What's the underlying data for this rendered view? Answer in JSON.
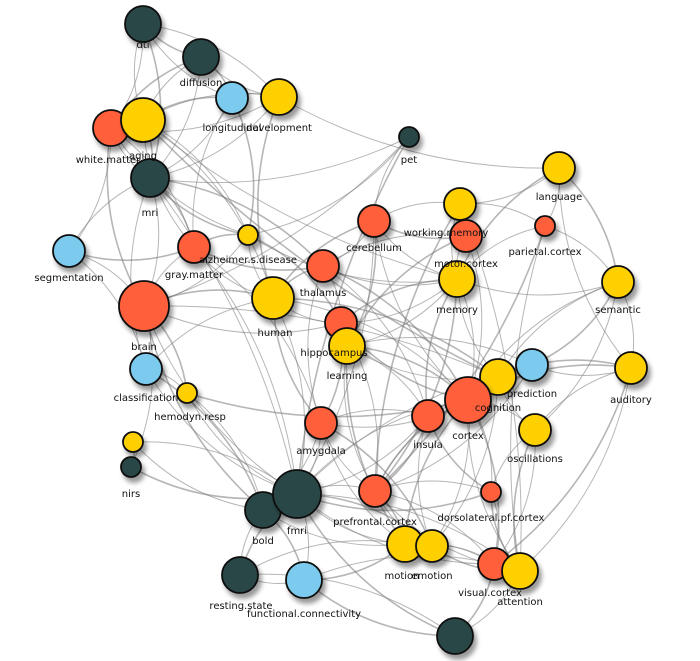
{
  "palette": {
    "method": "#2b4646",
    "measure": "#7ccaee",
    "region": "#ff5e3a",
    "concept": "#ffd000",
    "outline": "#111111",
    "edge": "#7a7a7a"
  },
  "nodes": [
    {
      "id": "dti",
      "label": "dti",
      "color": "method",
      "size": 3
    },
    {
      "id": "diffusion",
      "label": "diffusion",
      "color": "method",
      "size": 3
    },
    {
      "id": "longitudinal",
      "label": "longitudinal",
      "color": "measure",
      "size": 2
    },
    {
      "id": "development",
      "label": "development",
      "color": "concept",
      "size": 3
    },
    {
      "id": "white.matter",
      "label": "white.matter",
      "color": "region",
      "size": 3
    },
    {
      "id": "aging",
      "label": "aging",
      "color": "concept",
      "size": 4
    },
    {
      "id": "mri",
      "label": "mri",
      "color": "method",
      "size": 4
    },
    {
      "id": "pet",
      "label": "pet",
      "color": "method",
      "size": 1
    },
    {
      "id": "language",
      "label": "language",
      "color": "concept",
      "size": 2
    },
    {
      "id": "working.memory",
      "label": "working.memory",
      "color": "concept",
      "size": 2
    },
    {
      "id": "motor.cortex",
      "label": "motor.cortex",
      "color": "region",
      "size": 2
    },
    {
      "id": "parietal.cortex",
      "label": "parietal.cortex",
      "color": "region",
      "size": 1
    },
    {
      "id": "cerebellum",
      "label": "cerebellum",
      "color": "region",
      "size": 2
    },
    {
      "id": "segmentation",
      "label": "segmentation",
      "color": "measure",
      "size": 2
    },
    {
      "id": "gray.matter",
      "label": "gray.matter",
      "color": "region",
      "size": 2
    },
    {
      "id": "alzheimer.s.disease",
      "label": "alzheimer.s.disease",
      "color": "concept",
      "size": 1
    },
    {
      "id": "thalamus",
      "label": "thalamus",
      "color": "region",
      "size": 2
    },
    {
      "id": "memory",
      "label": "memory",
      "color": "concept",
      "size": 3
    },
    {
      "id": "semantic",
      "label": "semantic",
      "color": "concept",
      "size": 2
    },
    {
      "id": "human",
      "label": "human",
      "color": "concept",
      "size": 4
    },
    {
      "id": "brain",
      "label": "brain",
      "color": "region",
      "size": 5
    },
    {
      "id": "hippocampus",
      "label": "hippocampus",
      "color": "region",
      "size": 2
    },
    {
      "id": "learning",
      "label": "learning",
      "color": "concept",
      "size": 3
    },
    {
      "id": "classification",
      "label": "classification",
      "color": "measure",
      "size": 2
    },
    {
      "id": "hemodyn.resp",
      "label": "hemodyn.resp",
      "color": "concept",
      "size": 1
    },
    {
      "id": "prediction",
      "label": "prediction",
      "color": "measure",
      "size": 2
    },
    {
      "id": "cognition",
      "label": "cognition",
      "color": "concept",
      "size": 3
    },
    {
      "id": "auditory",
      "label": "auditory",
      "color": "concept",
      "size": 2
    },
    {
      "id": "cortex",
      "label": "cortex",
      "color": "region",
      "size": 4
    },
    {
      "id": "insula",
      "label": "insula",
      "color": "region",
      "size": 2
    },
    {
      "id": "amygdala",
      "label": "amygdala",
      "color": "region",
      "size": 2
    },
    {
      "id": "oscillations",
      "label": "oscillations",
      "color": "concept",
      "size": 2
    },
    {
      "id": "nirs-dot",
      "label": "",
      "color": "concept",
      "size": 1
    },
    {
      "id": "nirs",
      "label": "nirs",
      "color": "method",
      "size": 1
    },
    {
      "id": "bold",
      "label": "bold",
      "color": "method",
      "size": 3
    },
    {
      "id": "fmri",
      "label": "fmri",
      "color": "method",
      "size": 5
    },
    {
      "id": "prefrontal.cortex",
      "label": "prefrontal.cortex",
      "color": "region",
      "size": 2
    },
    {
      "id": "dorsolateral.pf.cortex",
      "label": "dorsolateral.pf.cortex",
      "color": "region",
      "size": 1
    },
    {
      "id": "motion",
      "label": "motion",
      "color": "concept",
      "size": 3
    },
    {
      "id": "emotion",
      "label": "emotion",
      "color": "concept",
      "size": 2
    },
    {
      "id": "visual.cortex",
      "label": "visual.cortex",
      "color": "region",
      "size": 2
    },
    {
      "id": "attention",
      "label": "attention",
      "color": "concept",
      "size": 3
    },
    {
      "id": "resting.state",
      "label": "resting.state",
      "color": "method",
      "size": 3
    },
    {
      "id": "functional.connectivity",
      "label": "functional.connectivity",
      "color": "measure",
      "size": 3
    },
    {
      "id": "bottom-node",
      "label": "",
      "color": "method",
      "size": 3
    }
  ],
  "edges": [
    [
      "dti",
      "diffusion"
    ],
    [
      "dti",
      "white.matter"
    ],
    [
      "dti",
      "aging"
    ],
    [
      "dti",
      "mri"
    ],
    [
      "dti",
      "longitudinal"
    ],
    [
      "dti",
      "development"
    ],
    [
      "diffusion",
      "white.matter"
    ],
    [
      "diffusion",
      "mri"
    ],
    [
      "diffusion",
      "aging"
    ],
    [
      "diffusion",
      "longitudinal"
    ],
    [
      "diffusion",
      "development"
    ],
    [
      "longitudinal",
      "development"
    ],
    [
      "longitudinal",
      "aging"
    ],
    [
      "longitudinal",
      "mri"
    ],
    [
      "longitudinal",
      "gray.matter"
    ],
    [
      "longitudinal",
      "alzheimer.s.disease"
    ],
    [
      "development",
      "aging"
    ],
    [
      "development",
      "white.matter"
    ],
    [
      "development",
      "human"
    ],
    [
      "development",
      "mri"
    ],
    [
      "development",
      "language"
    ],
    [
      "white.matter",
      "aging"
    ],
    [
      "white.matter",
      "mri"
    ],
    [
      "white.matter",
      "gray.matter"
    ],
    [
      "white.matter",
      "brain"
    ],
    [
      "white.matter",
      "segmentation"
    ],
    [
      "white.matter",
      "alzheimer.s.disease"
    ],
    [
      "aging",
      "mri"
    ],
    [
      "aging",
      "gray.matter"
    ],
    [
      "aging",
      "alzheimer.s.disease"
    ],
    [
      "aging",
      "cognition"
    ],
    [
      "aging",
      "human"
    ],
    [
      "aging",
      "memory"
    ],
    [
      "mri",
      "gray.matter"
    ],
    [
      "mri",
      "segmentation"
    ],
    [
      "mri",
      "brain"
    ],
    [
      "mri",
      "alzheimer.s.disease"
    ],
    [
      "mri",
      "fmri"
    ],
    [
      "mri",
      "classification"
    ],
    [
      "mri",
      "thalamus"
    ],
    [
      "mri",
      "pet"
    ],
    [
      "pet",
      "alzheimer.s.disease"
    ],
    [
      "pet",
      "fmri"
    ],
    [
      "pet",
      "brain"
    ],
    [
      "pet",
      "cerebellum"
    ],
    [
      "language",
      "semantic"
    ],
    [
      "language",
      "auditory"
    ],
    [
      "language",
      "working.memory"
    ],
    [
      "language",
      "memory"
    ],
    [
      "language",
      "parietal.cortex"
    ],
    [
      "working.memory",
      "memory"
    ],
    [
      "working.memory",
      "motor.cortex"
    ],
    [
      "working.memory",
      "cerebellum"
    ],
    [
      "working.memory",
      "parietal.cortex"
    ],
    [
      "working.memory",
      "prefrontal.cortex"
    ],
    [
      "working.memory",
      "attention"
    ],
    [
      "motor.cortex",
      "memory"
    ],
    [
      "motor.cortex",
      "cerebellum"
    ],
    [
      "motor.cortex",
      "thalamus"
    ],
    [
      "motor.cortex",
      "cortex"
    ],
    [
      "motor.cortex",
      "learning"
    ],
    [
      "parietal.cortex",
      "semantic"
    ],
    [
      "parietal.cortex",
      "attention"
    ],
    [
      "parietal.cortex",
      "prefrontal.cortex"
    ],
    [
      "parietal.cortex",
      "memory"
    ],
    [
      "cerebellum",
      "thalamus"
    ],
    [
      "cerebellum",
      "human"
    ],
    [
      "cerebellum",
      "fmri"
    ],
    [
      "cerebellum",
      "memory"
    ],
    [
      "cerebellum",
      "learning"
    ],
    [
      "cerebellum",
      "cortex"
    ],
    [
      "segmentation",
      "brain"
    ],
    [
      "segmentation",
      "gray.matter"
    ],
    [
      "segmentation",
      "classification"
    ],
    [
      "gray.matter",
      "brain"
    ],
    [
      "gray.matter",
      "alzheimer.s.disease"
    ],
    [
      "gray.matter",
      "human"
    ],
    [
      "gray.matter",
      "fmri"
    ],
    [
      "gray.matter",
      "thalamus"
    ],
    [
      "gray.matter",
      "amygdala"
    ],
    [
      "alzheimer.s.disease",
      "human"
    ],
    [
      "alzheimer.s.disease",
      "hippocampus"
    ],
    [
      "alzheimer.s.disease",
      "memory"
    ],
    [
      "alzheimer.s.disease",
      "brain"
    ],
    [
      "thalamus",
      "human"
    ],
    [
      "thalamus",
      "hippocampus"
    ],
    [
      "thalamus",
      "memory"
    ],
    [
      "thalamus",
      "cortex"
    ],
    [
      "thalamus",
      "amygdala"
    ],
    [
      "thalamus",
      "insula"
    ],
    [
      "memory",
      "hippocampus"
    ],
    [
      "memory",
      "learning"
    ],
    [
      "memory",
      "cognition"
    ],
    [
      "memory",
      "prefrontal.cortex"
    ],
    [
      "memory",
      "semantic"
    ],
    [
      "memory",
      "cortex"
    ],
    [
      "memory",
      "insula"
    ],
    [
      "semantic",
      "auditory"
    ],
    [
      "semantic",
      "cognition"
    ],
    [
      "semantic",
      "prediction"
    ],
    [
      "semantic",
      "cortex"
    ],
    [
      "semantic",
      "oscillations"
    ],
    [
      "human",
      "brain"
    ],
    [
      "human",
      "fmri"
    ],
    [
      "human",
      "hippocampus"
    ],
    [
      "human",
      "cognition"
    ],
    [
      "human",
      "classification"
    ],
    [
      "human",
      "cortex"
    ],
    [
      "human",
      "amygdala"
    ],
    [
      "brain",
      "classification"
    ],
    [
      "brain",
      "fmri"
    ],
    [
      "brain",
      "hemodyn.resp"
    ],
    [
      "brain",
      "hippocampus"
    ],
    [
      "brain",
      "cognition"
    ],
    [
      "brain",
      "bold"
    ],
    [
      "brain",
      "nirs"
    ],
    [
      "hippocampus",
      "learning"
    ],
    [
      "hippocampus",
      "amygdala"
    ],
    [
      "hippocampus",
      "memory"
    ],
    [
      "hippocampus",
      "prefrontal.cortex"
    ],
    [
      "hippocampus",
      "cortex"
    ],
    [
      "learning",
      "prediction"
    ],
    [
      "learning",
      "cognition"
    ],
    [
      "learning",
      "cortex"
    ],
    [
      "learning",
      "prefrontal.cortex"
    ],
    [
      "learning",
      "insula"
    ],
    [
      "learning",
      "motion"
    ],
    [
      "classification",
      "hemodyn.resp"
    ],
    [
      "classification",
      "fmri"
    ],
    [
      "classification",
      "bold"
    ],
    [
      "hemodyn.resp",
      "fmri"
    ],
    [
      "hemodyn.resp",
      "bold"
    ],
    [
      "hemodyn.resp",
      "cortex"
    ],
    [
      "prediction",
      "cognition"
    ],
    [
      "prediction",
      "auditory"
    ],
    [
      "prediction",
      "cortex"
    ],
    [
      "prediction",
      "fmri"
    ],
    [
      "prediction",
      "prefrontal.cortex"
    ],
    [
      "cognition",
      "cortex"
    ],
    [
      "cognition",
      "insula"
    ],
    [
      "cognition",
      "oscillations"
    ],
    [
      "cognition",
      "auditory"
    ],
    [
      "cognition",
      "prefrontal.cortex"
    ],
    [
      "cognition",
      "emotion"
    ],
    [
      "auditory",
      "cortex"
    ],
    [
      "auditory",
      "attention"
    ],
    [
      "auditory",
      "oscillations"
    ],
    [
      "auditory",
      "visual.cortex"
    ],
    [
      "cortex",
      "insula"
    ],
    [
      "cortex",
      "oscillations"
    ],
    [
      "cortex",
      "prefrontal.cortex"
    ],
    [
      "cortex",
      "dorsolateral.pf.cortex"
    ],
    [
      "cortex",
      "fmri"
    ],
    [
      "cortex",
      "visual.cortex"
    ],
    [
      "cortex",
      "attention"
    ],
    [
      "cortex",
      "amygdala"
    ],
    [
      "cortex",
      "motion"
    ],
    [
      "cortex",
      "emotion"
    ],
    [
      "insula",
      "amygdala"
    ],
    [
      "insula",
      "prefrontal.cortex"
    ],
    [
      "insula",
      "emotion"
    ],
    [
      "insula",
      "fmri"
    ],
    [
      "insula",
      "dorsolateral.pf.cortex"
    ],
    [
      "amygdala",
      "fmri"
    ],
    [
      "amygdala",
      "prefrontal.cortex"
    ],
    [
      "amygdala",
      "emotion"
    ],
    [
      "amygdala",
      "motion"
    ],
    [
      "amygdala",
      "bold"
    ],
    [
      "oscillations",
      "attention"
    ],
    [
      "oscillations",
      "visual.cortex"
    ],
    [
      "oscillations",
      "dorsolateral.pf.cortex"
    ],
    [
      "nirs-dot",
      "nirs"
    ],
    [
      "nirs-dot",
      "bold"
    ],
    [
      "nirs-dot",
      "fmri"
    ],
    [
      "nirs",
      "fmri"
    ],
    [
      "bold",
      "fmri"
    ],
    [
      "bold",
      "resting.state"
    ],
    [
      "bold",
      "functional.connectivity"
    ],
    [
      "bold",
      "motion"
    ],
    [
      "fmri",
      "prefrontal.cortex"
    ],
    [
      "fmri",
      "resting.state"
    ],
    [
      "fmri",
      "functional.connectivity"
    ],
    [
      "fmri",
      "motion"
    ],
    [
      "fmri",
      "emotion"
    ],
    [
      "fmri",
      "visual.cortex"
    ],
    [
      "fmri",
      "attention"
    ],
    [
      "fmri",
      "dorsolateral.pf.cortex"
    ],
    [
      "prefrontal.cortex",
      "dorsolateral.pf.cortex"
    ],
    [
      "prefrontal.cortex",
      "emotion"
    ],
    [
      "prefrontal.cortex",
      "motion"
    ],
    [
      "prefrontal.cortex",
      "attention"
    ],
    [
      "prefrontal.cortex",
      "visual.cortex"
    ],
    [
      "dorsolateral.pf.cortex",
      "attention"
    ],
    [
      "dorsolateral.pf.cortex",
      "visual.cortex"
    ],
    [
      "motion",
      "emotion"
    ],
    [
      "motion",
      "functional.connectivity"
    ],
    [
      "motion",
      "resting.state"
    ],
    [
      "motion",
      "visual.cortex"
    ],
    [
      "emotion",
      "attention"
    ],
    [
      "emotion",
      "visual.cortex"
    ],
    [
      "visual.cortex",
      "attention"
    ],
    [
      "visual.cortex",
      "bottom-node"
    ],
    [
      "resting.state",
      "functional.connectivity"
    ],
    [
      "resting.state",
      "bottom-node"
    ],
    [
      "functional.connectivity",
      "bottom-node"
    ],
    [
      "functional.connectivity",
      "attention"
    ],
    [
      "bottom-node",
      "attention"
    ],
    [
      "bottom-node",
      "fmri"
    ]
  ]
}
